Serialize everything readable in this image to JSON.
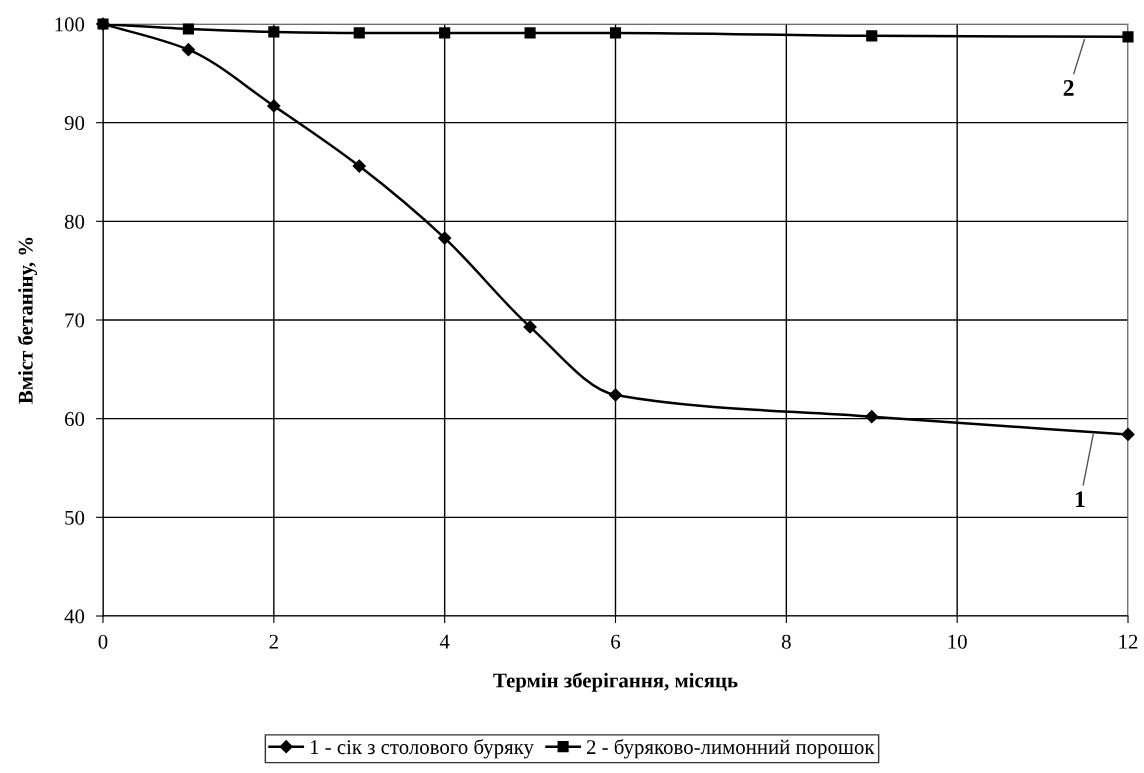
{
  "chart_data": {
    "type": "line",
    "xlabel": "Термін зберігання, місяць",
    "ylabel": "Вміст бетаніну, %",
    "xlim": [
      0,
      12
    ],
    "xticks": [
      0,
      2,
      4,
      6,
      8,
      10,
      12
    ],
    "ylim": [
      40,
      100
    ],
    "yticks": [
      40,
      50,
      60,
      70,
      80,
      90,
      100
    ],
    "grid": true,
    "legend": "bottom",
    "line_style": "solid",
    "series": [
      {
        "name": "1 - сік з столового буряку",
        "color": "#000000",
        "marker": "diamond",
        "x": [
          0,
          1,
          2,
          3,
          4,
          5,
          6,
          9,
          12
        ],
        "values": [
          100,
          97.4,
          91.7,
          85.6,
          78.3,
          69.3,
          62.4,
          60.2,
          58.4
        ]
      },
      {
        "name": "2 - буряково-лимонний порошок",
        "color": "#000000",
        "marker": "square",
        "x": [
          0,
          1,
          2,
          3,
          4,
          5,
          6,
          9,
          12
        ],
        "values": [
          100,
          99.5,
          99.2,
          99.1,
          99.1,
          99.1,
          99.1,
          98.8,
          98.7
        ]
      }
    ],
    "annotations": [
      {
        "text": "1",
        "x": 11.6,
        "y": 58.7
      },
      {
        "text": "2",
        "x": 11.5,
        "y": 98.7
      }
    ]
  }
}
